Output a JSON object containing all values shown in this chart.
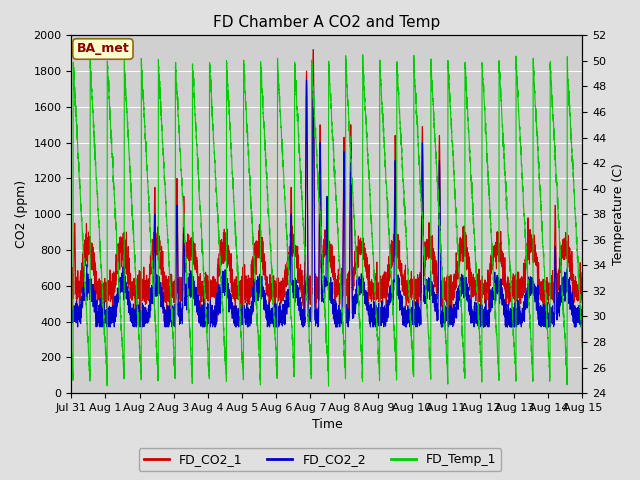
{
  "title": "FD Chamber A CO2 and Temp",
  "xlabel": "Time",
  "ylabel_left": "CO2 (ppm)",
  "ylabel_right": "Temperature (C)",
  "annotation": "BA_met",
  "legend_labels": [
    "FD_CO2_1",
    "FD_CO2_2",
    "FD_Temp_1"
  ],
  "legend_colors": [
    "#cc0000",
    "#0000cc",
    "#00cc00"
  ],
  "co2_ylim": [
    0,
    2000
  ],
  "temp_ylim": [
    24,
    52
  ],
  "bg_color": "#e0e0e0",
  "plot_bg_color": "#d0d0d0",
  "xtick_labels": [
    "Jul 31",
    "Aug 1",
    "Aug 2",
    "Aug 3",
    "Aug 4",
    "Aug 5",
    "Aug 6",
    "Aug 7",
    "Aug 8",
    "Aug 9",
    "Aug 10",
    "Aug 11",
    "Aug 12",
    "Aug 13",
    "Aug 14",
    "Aug 15"
  ],
  "title_fontsize": 11,
  "axis_fontsize": 9,
  "tick_fontsize": 8,
  "line_width": 0.8,
  "n_days": 15,
  "pts_per_day": 288
}
